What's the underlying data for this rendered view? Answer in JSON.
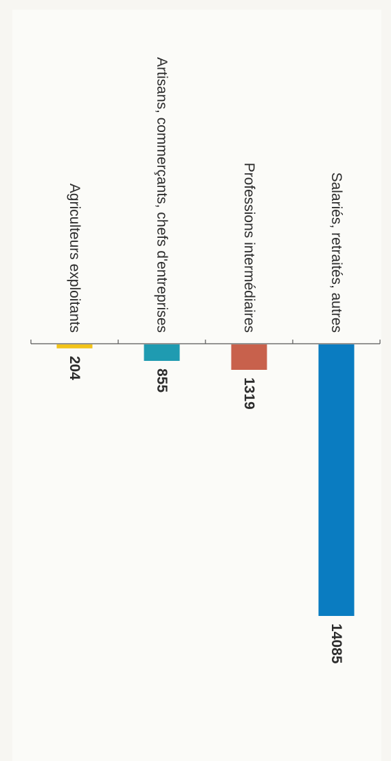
{
  "chart_data": {
    "type": "bar",
    "orientation": "vertical, printed rotated 90° clockwise",
    "categories": [
      "Salariés, retraités, autres",
      "Professions intermédiaires",
      "Artisans, commerçants, chefs d'entreprises",
      "Agriculteurs exploitants"
    ],
    "values": [
      14085,
      1319,
      855,
      204
    ],
    "colors": [
      "#0a7cc1",
      "#c8614c",
      "#1f9bb1",
      "#f2c318"
    ],
    "title": "",
    "xlabel": "",
    "ylabel": "",
    "ylim": [
      0,
      14085
    ],
    "grid": false,
    "legend": "none",
    "data_labels": true
  }
}
